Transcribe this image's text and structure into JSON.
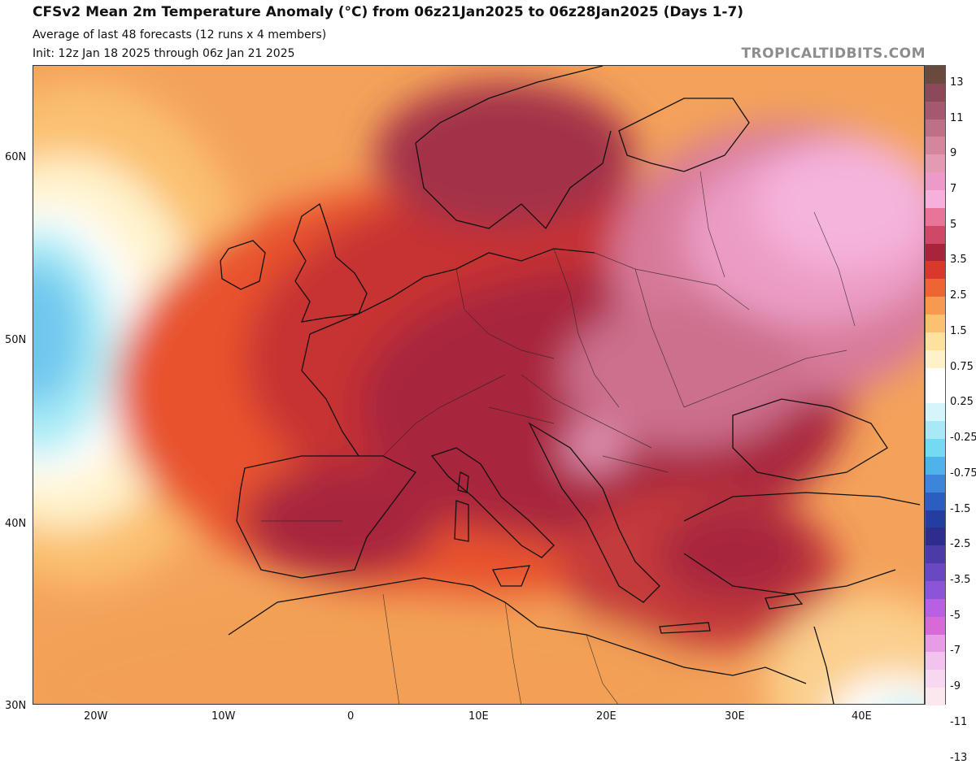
{
  "header": {
    "title": "CFSv2 Mean 2m Temperature Anomaly (°C) from 06z21Jan2025 to 06z28Jan2025 (Days 1-7)",
    "subtitle1": "Average of last 48 forecasts (12 runs x 4 members)",
    "subtitle2": "Init: 12z Jan 18 2025 through 06z Jan 21 2025",
    "credit": "TROPICALTIDBITS.COM"
  },
  "map": {
    "lat_labels": [
      "60N",
      "50N",
      "40N",
      "30N"
    ],
    "lon_labels": [
      "20W",
      "10W",
      "0",
      "10E",
      "20E",
      "30E",
      "40E"
    ]
  },
  "colorbar": {
    "labels": [
      "13",
      "11",
      "9",
      "7",
      "5",
      "3.5",
      "2.5",
      "1.5",
      "0.75",
      "0.25",
      "-0.25",
      "-0.75",
      "-1.5",
      "-2.5",
      "-3.5",
      "-5",
      "-7",
      "-9",
      "-11",
      "-13"
    ],
    "colors": [
      "#6b4a3e",
      "#8a4a5a",
      "#a5586f",
      "#bf6f86",
      "#d6869c",
      "#e59ab3",
      "#ef99c8",
      "#f7b0dd",
      "#e8749a",
      "#cf4868",
      "#a8243a",
      "#d8392a",
      "#ee6534",
      "#f59a4f",
      "#fbc072",
      "#fde29d",
      "#fff2c8",
      "#ffffff",
      "#ffffff",
      "#d6f5fb",
      "#a7eaf5",
      "#74d9f2",
      "#4fb2ea",
      "#3b86d8",
      "#2b5fbf",
      "#233e9e",
      "#2e2c8c",
      "#4b3ba6",
      "#6a48c1",
      "#8c55d8",
      "#b85fe2",
      "#d869d9",
      "#e79ce6",
      "#f3c3ef",
      "#f8d8f0",
      "#fbe7ee"
    ]
  }
}
